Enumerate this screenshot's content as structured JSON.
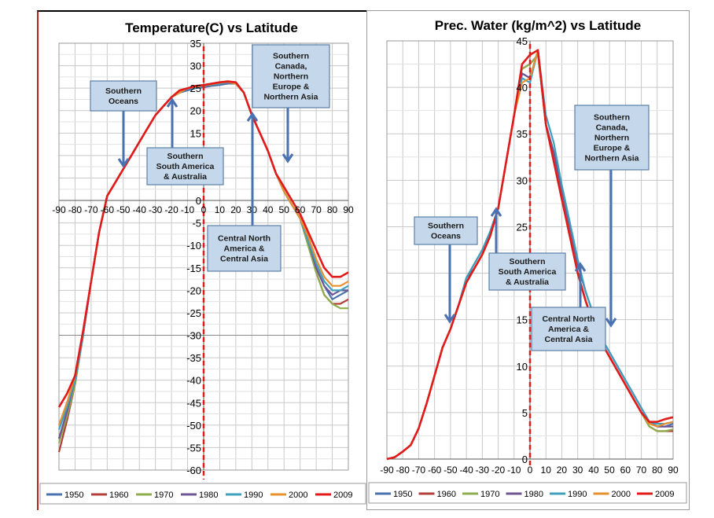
{
  "series_colors": {
    "1950": "#4a72b0",
    "1960": "#b33f3a",
    "1970": "#8fad4d",
    "1980": "#6f5593",
    "1990": "#3fa0bd",
    "2000": "#e7902f",
    "2009": "#e11a1a"
  },
  "annotation_style": {
    "box_fill": "#c5d7ea",
    "box_stroke": "#5b7fa7",
    "arrow_color": "#4a72b0"
  },
  "chart_data": [
    {
      "type": "line",
      "title": "Temperature(C) vs Latitude",
      "xlim": [
        -90,
        90
      ],
      "ylim": [
        -60,
        35
      ],
      "xticks": [
        "-90",
        "-80",
        "-70",
        "-60",
        "-50",
        "-40",
        "-30",
        "-20",
        "-10",
        "0",
        "10",
        "20",
        "30",
        "40",
        "50",
        "60",
        "70",
        "80",
        "90"
      ],
      "yticks": [
        "35",
        "30",
        "25",
        "20",
        "15",
        "10",
        "5",
        "0",
        "-5",
        "-10",
        "-15",
        "-20",
        "-25",
        "-30",
        "-35",
        "-40",
        "-45",
        "-50",
        "-55",
        "-60"
      ],
      "x": [
        -90,
        -85,
        -80,
        -75,
        -70,
        -65,
        -60,
        -55,
        -50,
        -45,
        -40,
        -35,
        -30,
        -25,
        -20,
        -15,
        -10,
        -5,
        0,
        5,
        10,
        15,
        20,
        25,
        30,
        35,
        40,
        45,
        50,
        55,
        60,
        65,
        70,
        75,
        80,
        85,
        90
      ],
      "series": [
        {
          "name": "1950",
          "values": [
            -53,
            -47,
            -40,
            -30,
            -18,
            -7,
            1,
            4,
            7,
            10,
            13,
            16,
            19,
            21,
            23,
            24,
            24.5,
            25,
            25.2,
            25.5,
            25.7,
            26,
            26,
            24,
            19,
            15,
            11,
            6,
            2,
            -1,
            -4,
            -9,
            -15,
            -19,
            -22,
            -21,
            -20
          ]
        },
        {
          "name": "1960",
          "values": [
            -56,
            -49,
            -41,
            -30,
            -18,
            -7,
            1,
            4,
            7,
            10,
            13,
            16,
            19,
            21,
            23,
            24,
            25,
            25.2,
            25.4,
            25.7,
            26,
            26.2,
            26,
            24,
            19,
            15,
            11,
            6,
            2,
            -1,
            -4,
            -10,
            -16,
            -21,
            -23,
            -23,
            -22
          ]
        },
        {
          "name": "1970",
          "values": [
            -54,
            -48,
            -41,
            -30,
            -18,
            -7,
            1,
            4,
            7,
            10,
            13,
            16,
            19,
            21,
            23,
            24,
            25,
            25.2,
            25.4,
            25.7,
            26,
            26.2,
            26,
            24,
            19,
            15,
            11,
            6,
            2,
            -1,
            -4,
            -10,
            -16,
            -21,
            -23,
            -24,
            -24
          ]
        },
        {
          "name": "1980",
          "values": [
            -53,
            -47,
            -40,
            -30,
            -18,
            -7,
            1,
            4,
            7,
            10,
            13,
            16,
            19,
            21,
            23,
            24,
            25,
            25.2,
            25.4,
            25.7,
            26,
            26.2,
            26,
            24,
            19,
            15,
            11,
            6,
            2,
            -1,
            -4,
            -9,
            -15,
            -19,
            -21,
            -20,
            -20
          ]
        },
        {
          "name": "1990",
          "values": [
            -51,
            -46,
            -40,
            -30,
            -18,
            -7,
            1,
            4,
            7,
            10,
            13,
            16,
            19,
            21,
            23,
            24,
            25,
            25.2,
            25.5,
            25.8,
            26,
            26.3,
            26,
            24,
            19,
            15,
            11,
            6,
            2,
            -1,
            -4,
            -9,
            -14,
            -18,
            -20,
            -20,
            -19
          ]
        },
        {
          "name": "2000",
          "values": [
            -50,
            -45,
            -39,
            -29,
            -18,
            -7,
            1,
            4,
            7,
            10,
            13,
            16,
            19,
            21,
            23,
            24,
            25,
            25.3,
            25.6,
            25.9,
            26.2,
            26.4,
            26,
            24,
            19,
            15,
            11,
            6,
            2,
            -1,
            -4,
            -8,
            -13,
            -17,
            -19,
            -19,
            -18
          ]
        },
        {
          "name": "2009",
          "values": [
            -46,
            -43,
            -39,
            -29,
            -18,
            -7,
            1,
            4,
            7,
            10,
            13,
            16,
            19,
            21,
            23,
            24.5,
            25,
            25.5,
            25.7,
            26,
            26.3,
            26.5,
            26.3,
            24,
            19,
            15,
            11,
            6,
            3,
            0,
            -3,
            -7,
            -11,
            -15,
            -17,
            -17,
            -16
          ]
        }
      ],
      "annotations": [
        {
          "lines": [
            "Southern",
            "Oceans"
          ]
        },
        {
          "lines": [
            "Southern",
            "South America",
            "& Australia"
          ]
        },
        {
          "lines": [
            "Southern",
            "Canada,",
            "Northern",
            "Europe &",
            "Northern Asia"
          ]
        },
        {
          "lines": [
            "Central North",
            "America &",
            "Central Asia"
          ]
        }
      ],
      "legend": [
        "1950",
        "1960",
        "1970",
        "1980",
        "1990",
        "2000",
        "2009"
      ],
      "legend_position": "bottom",
      "grid": true
    },
    {
      "type": "line",
      "title": "Prec. Water (kg/m^2) vs Latitude",
      "xlim": [
        -90,
        90
      ],
      "ylim": [
        0,
        45
      ],
      "xticks": [
        "-90",
        "-80",
        "-70",
        "-60",
        "-50",
        "-40",
        "-30",
        "-20",
        "-10",
        "0",
        "10",
        "20",
        "30",
        "40",
        "50",
        "60",
        "70",
        "80",
        "90"
      ],
      "yticks": [
        "45",
        "40",
        "35",
        "30",
        "25",
        "20",
        "15",
        "10",
        "5",
        "0"
      ],
      "x": [
        -90,
        -85,
        -80,
        -75,
        -70,
        -65,
        -60,
        -55,
        -50,
        -45,
        -40,
        -35,
        -30,
        -25,
        -20,
        -15,
        -10,
        -5,
        0,
        5,
        10,
        15,
        20,
        25,
        30,
        35,
        40,
        45,
        50,
        55,
        60,
        65,
        70,
        75,
        80,
        85,
        90
      ],
      "series": [
        {
          "name": "1950",
          "values": [
            0,
            0.2,
            0.8,
            1.5,
            3.3,
            6,
            9,
            12,
            14,
            16.5,
            19.5,
            20.5,
            22,
            24,
            27,
            32,
            37,
            41.5,
            41,
            44,
            36,
            33,
            29,
            25,
            21,
            18,
            15.5,
            13,
            11.5,
            10,
            8.5,
            7,
            5.5,
            4,
            3.5,
            3.5,
            3.8
          ]
        },
        {
          "name": "1960",
          "values": [
            0,
            0.2,
            0.8,
            1.5,
            3.3,
            6,
            9,
            12,
            14,
            16.5,
            19,
            20.5,
            22,
            24,
            27,
            32,
            37,
            42,
            42.5,
            43.5,
            36,
            32,
            28,
            24,
            20,
            17,
            14.5,
            12.5,
            11,
            9.5,
            8,
            6.5,
            5,
            3.5,
            3,
            3,
            3
          ]
        },
        {
          "name": "1970",
          "values": [
            0,
            0.2,
            0.8,
            1.5,
            3.3,
            6,
            9,
            12,
            14,
            16.5,
            19,
            20.5,
            22,
            24,
            27,
            32,
            37,
            42,
            42.5,
            43.5,
            36,
            32,
            28,
            24,
            20,
            17,
            14.5,
            12.5,
            11,
            9.5,
            8,
            6.5,
            5,
            3.5,
            3,
            3,
            3.2
          ]
        },
        {
          "name": "1980",
          "values": [
            0,
            0.2,
            0.8,
            1.5,
            3.3,
            6,
            9,
            12,
            14,
            16.5,
            19.5,
            21,
            22.5,
            24.5,
            27,
            32,
            37,
            41.5,
            41,
            44,
            36,
            33,
            29,
            25,
            21,
            18,
            15.5,
            13,
            11.5,
            10,
            8.5,
            7,
            5.5,
            4,
            3.5,
            3.5,
            3.5
          ]
        },
        {
          "name": "1990",
          "values": [
            0,
            0.2,
            0.8,
            1.5,
            3.3,
            6,
            9,
            12,
            14,
            16.5,
            19.5,
            21,
            22.5,
            24.5,
            27,
            32,
            37,
            41,
            40.5,
            44,
            37,
            34,
            29.5,
            25.5,
            21.5,
            18,
            15.5,
            13,
            11.5,
            10,
            8.5,
            7,
            5.5,
            4,
            3.8,
            3.8,
            4
          ]
        },
        {
          "name": "2000",
          "values": [
            0,
            0.2,
            0.8,
            1.5,
            3.3,
            6,
            9,
            12,
            14,
            16.5,
            19,
            20.5,
            22,
            24,
            27,
            32,
            37,
            40.5,
            41,
            44,
            36,
            32,
            28,
            24,
            20,
            17,
            14.5,
            12.5,
            11,
            9.5,
            8,
            6.5,
            5,
            3.8,
            3.5,
            3.8,
            4
          ]
        },
        {
          "name": "2009",
          "values": [
            0,
            0.2,
            0.8,
            1.5,
            3.3,
            6,
            9,
            12,
            14,
            16.5,
            19,
            20.5,
            22,
            24,
            27,
            32,
            37,
            42.5,
            43.5,
            44,
            36,
            32,
            28,
            24,
            20,
            17,
            14.5,
            12.5,
            11,
            9.5,
            8,
            6.5,
            5,
            4,
            4,
            4.3,
            4.5
          ]
        }
      ],
      "annotations": [
        {
          "lines": [
            "Southern",
            "Oceans"
          ]
        },
        {
          "lines": [
            "Southern",
            "South America",
            "& Australia"
          ]
        },
        {
          "lines": [
            "Southern",
            "Canada,",
            "Northern",
            "Europe &",
            "Northern Asia"
          ]
        },
        {
          "lines": [
            "Central North",
            "America &",
            "Central Asia"
          ]
        }
      ],
      "legend": [
        "1950",
        "1960",
        "1970",
        "1980",
        "1990",
        "2000",
        "2009"
      ],
      "legend_position": "bottom",
      "grid": true
    }
  ]
}
